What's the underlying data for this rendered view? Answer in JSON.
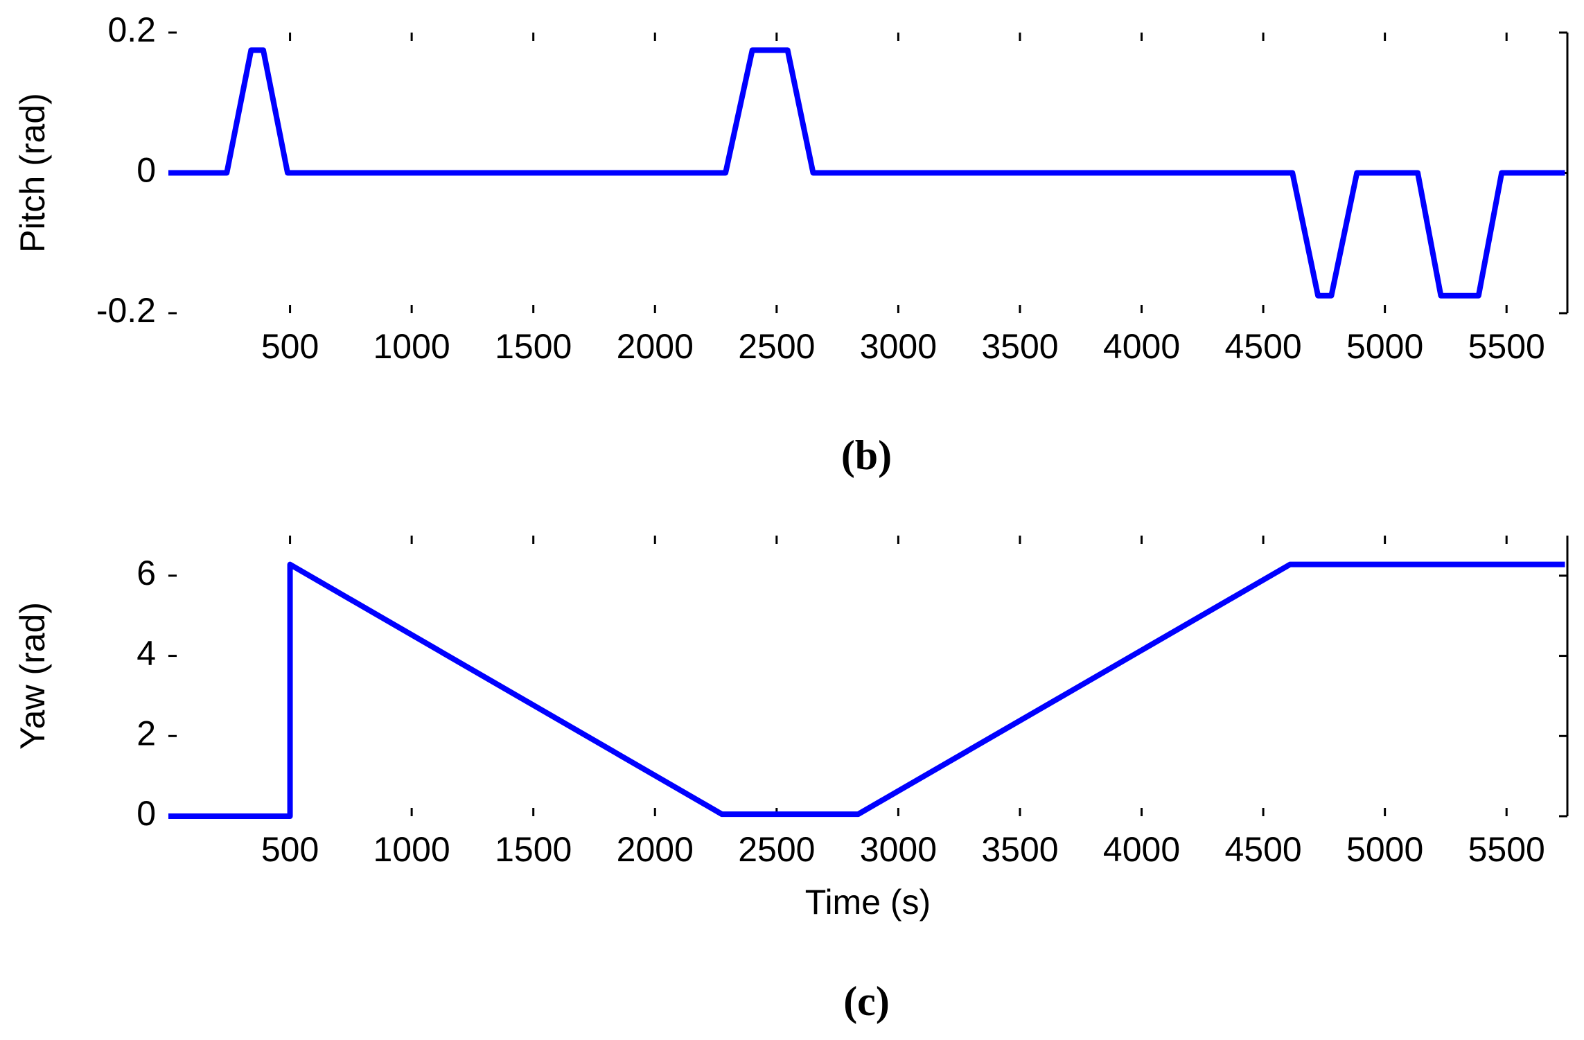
{
  "chart_data": [
    {
      "type": "line",
      "caption": "(b)",
      "y_label": "Pitch (rad)",
      "x": [
        0,
        240,
        340,
        390,
        490,
        2290,
        2400,
        2545,
        2650,
        4620,
        4725,
        4780,
        4885,
        5135,
        5230,
        5385,
        5480,
        5740
      ],
      "series": [
        {
          "name": "Pitch",
          "color": "#0000ff",
          "values": [
            0,
            0,
            0.175,
            0.175,
            0,
            0,
            0.175,
            0.175,
            0,
            0,
            -0.175,
            -0.175,
            0,
            0,
            -0.175,
            -0.175,
            0,
            0
          ]
        }
      ],
      "xlim": [
        0,
        5750
      ],
      "xticks": [
        500,
        1000,
        1500,
        2000,
        2500,
        3000,
        3500,
        4000,
        4500,
        5000,
        5500
      ],
      "ylim": [
        -0.2,
        0.2
      ],
      "yticks": [
        -0.2,
        0,
        0.2
      ]
    },
    {
      "type": "line",
      "caption": "(c)",
      "y_label": "Yaw (rad)",
      "x_label": "Time (s)",
      "x": [
        0,
        500,
        500,
        2275,
        2835,
        4610,
        5740
      ],
      "series": [
        {
          "name": "Yaw",
          "color": "#0000ff",
          "values": [
            0,
            0,
            6.28,
            0.05,
            0.05,
            6.28,
            6.28
          ]
        }
      ],
      "xlim": [
        0,
        5750
      ],
      "xticks": [
        500,
        1000,
        1500,
        2000,
        2500,
        3000,
        3500,
        4000,
        4500,
        5000,
        5500
      ],
      "ylim": [
        0,
        7
      ],
      "yticks": [
        0,
        2,
        4,
        6
      ]
    }
  ]
}
